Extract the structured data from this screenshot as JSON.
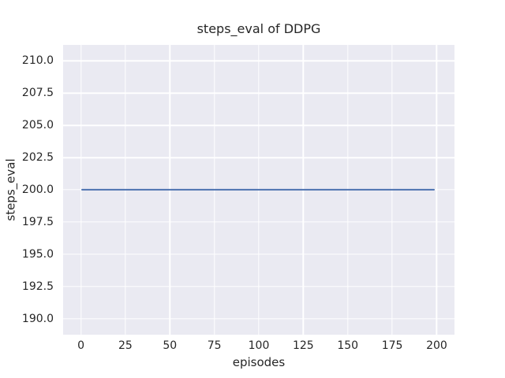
{
  "chart_data": {
    "type": "line",
    "title": "steps_eval of DDPG",
    "xlabel": "episodes",
    "ylabel": "steps_eval",
    "x_ticks": [
      0,
      25,
      50,
      75,
      100,
      125,
      150,
      175,
      200
    ],
    "x_tick_labels": [
      "0",
      "25",
      "50",
      "75",
      "100",
      "125",
      "150",
      "175",
      "200"
    ],
    "y_ticks": [
      190.0,
      192.5,
      195.0,
      197.5,
      200.0,
      202.5,
      205.0,
      207.5,
      210.0
    ],
    "y_tick_labels": [
      "190.0",
      "192.5",
      "195.0",
      "197.5",
      "200.0",
      "202.5",
      "205.0",
      "207.5",
      "210.0"
    ],
    "xlim": [
      -10,
      210
    ],
    "ylim": [
      188.75,
      211.25
    ],
    "grid": true,
    "legend": false,
    "plot_bg_color": "#eaeaf2",
    "grid_color": "#ffffff",
    "text_color": "#262626",
    "series": [
      {
        "name": "DDPG steps_eval",
        "x": [
          0,
          199
        ],
        "y": [
          200,
          200
        ],
        "color": "#4c72b0",
        "note": "constant value 200 across all episodes"
      }
    ]
  }
}
